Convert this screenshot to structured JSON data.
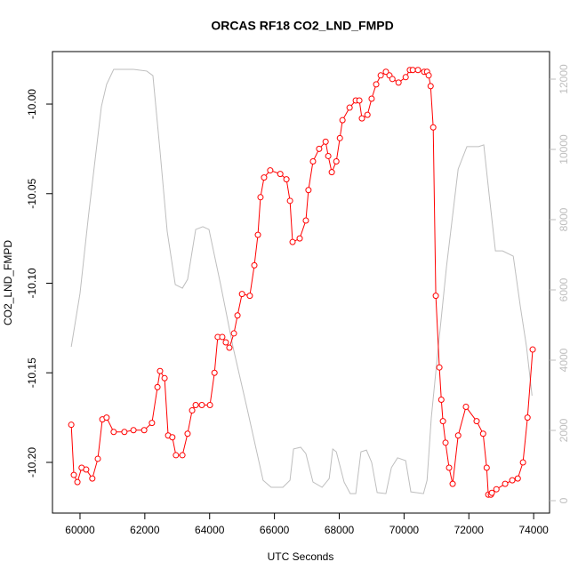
{
  "chart_data": {
    "type": "line",
    "title": "ORCAS RF18 CO2_LND_FMPD",
    "x_label": "UTC Seconds",
    "y_label": "CO2_LND_FMPD",
    "xlim": [
      59150,
      74490
    ],
    "ylim": [
      -10.2283,
      -9.9707
    ],
    "y2lim": [
      -354,
      12785
    ],
    "xticks": [
      60000,
      62000,
      64000,
      66000,
      68000,
      70000,
      72000,
      74000
    ],
    "yticks": [
      {
        "value": -10.2,
        "label": "-10.20"
      },
      -10.15,
      {
        "value": -10.1,
        "label": "-10.10"
      },
      -10.05,
      {
        "value": -10,
        "label": "-10.00"
      }
    ],
    "y2ticks": [
      0,
      2000,
      4000,
      6000,
      8000,
      10000,
      12000
    ],
    "series": [
      {
        "color": "#ff0000",
        "markers": true,
        "x": [
          59730,
          59810,
          59920,
          60050,
          60190,
          60380,
          60550,
          60690,
          60820,
          61040,
          61370,
          61650,
          61980,
          62220,
          62390,
          62470,
          62610,
          62720,
          62850,
          62960,
          63160,
          63320,
          63460,
          63570,
          63760,
          64010,
          64150,
          64250,
          64390,
          64500,
          64610,
          64750,
          64860,
          65000,
          65240,
          65380,
          65490,
          65570,
          65680,
          65870,
          66180,
          66370,
          66480,
          66560,
          66780,
          66970,
          67050,
          67190,
          67380,
          67580,
          67660,
          67770,
          67910,
          68020,
          68100,
          68320,
          68510,
          68620,
          68700,
          68870,
          69000,
          69140,
          69280,
          69440,
          69550,
          69640,
          69830,
          70050,
          70180,
          70270,
          70430,
          70620,
          70710,
          70760,
          70820,
          70900,
          70980,
          71090,
          71150,
          71200,
          71280,
          71390,
          71500,
          71670,
          71910,
          72240,
          72440,
          72550,
          72600,
          72680,
          72710,
          72850,
          73120,
          73340,
          73510,
          73670,
          73810,
          73970
        ],
        "values": [
          -10.179,
          -10.207,
          -10.211,
          -10.203,
          -10.204,
          -10.209,
          -10.198,
          -10.176,
          -10.175,
          -10.183,
          -10.183,
          -10.182,
          -10.182,
          -10.178,
          -10.158,
          -10.149,
          -10.153,
          -10.185,
          -10.186,
          -10.196,
          -10.196,
          -10.184,
          -10.171,
          -10.168,
          -10.168,
          -10.168,
          -10.15,
          -10.13,
          -10.13,
          -10.133,
          -10.136,
          -10.128,
          -10.118,
          -10.106,
          -10.107,
          -10.09,
          -10.073,
          -10.052,
          -10.041,
          -10.037,
          -10.039,
          -10.042,
          -10.054,
          -10.077,
          -10.075,
          -10.065,
          -10.048,
          -10.032,
          -10.025,
          -10.021,
          -10.029,
          -10.038,
          -10.032,
          -10.019,
          -10.009,
          -10.002,
          -9.998,
          -9.998,
          -10.008,
          -10.006,
          -9.997,
          -9.989,
          -9.984,
          -9.982,
          -9.984,
          -9.986,
          -9.988,
          -9.985,
          -9.981,
          -9.981,
          -9.981,
          -9.982,
          -9.982,
          -9.984,
          -9.99,
          -10.013,
          -10.107,
          -10.147,
          -10.165,
          -10.177,
          -10.189,
          -10.203,
          -10.212,
          -10.185,
          -10.169,
          -10.177,
          -10.184,
          -10.203,
          -10.218,
          -10.218,
          -10.217,
          -10.215,
          -10.212,
          -10.21,
          -10.209,
          -10.2,
          -10.175,
          -10.137
        ]
      },
      {
        "color": "#bebebe",
        "axis": "y2",
        "markers": false,
        "x": [
          59730,
          60000,
          60270,
          60660,
          60820,
          61040,
          61650,
          62060,
          62250,
          62470,
          62690,
          62940,
          63160,
          63320,
          63570,
          63790,
          63980,
          64340,
          64720,
          65160,
          65650,
          65900,
          66260,
          66480,
          66590,
          66810,
          66970,
          67190,
          67470,
          67690,
          67800,
          67910,
          68150,
          68340,
          68510,
          68670,
          68840,
          69000,
          69170,
          69440,
          69610,
          69800,
          70050,
          70210,
          70600,
          70710,
          70840,
          71030,
          71310,
          71670,
          71940,
          72300,
          72460,
          72630,
          72820,
          73040,
          73370,
          73590,
          73780,
          73950
        ],
        "values": [
          4380,
          5900,
          8180,
          11220,
          11850,
          12280,
          12280,
          12230,
          12100,
          9950,
          7670,
          6150,
          6050,
          6300,
          7720,
          7800,
          7720,
          6150,
          4380,
          2610,
          580,
          380,
          380,
          580,
          1470,
          1520,
          1340,
          530,
          380,
          630,
          1470,
          1390,
          530,
          200,
          200,
          1390,
          1440,
          1090,
          230,
          200,
          940,
          1220,
          1140,
          250,
          200,
          580,
          2350,
          4130,
          6660,
          9440,
          10080,
          10080,
          10130,
          8680,
          7110,
          7110,
          6960,
          5520,
          4380,
          2990
        ]
      }
    ]
  }
}
